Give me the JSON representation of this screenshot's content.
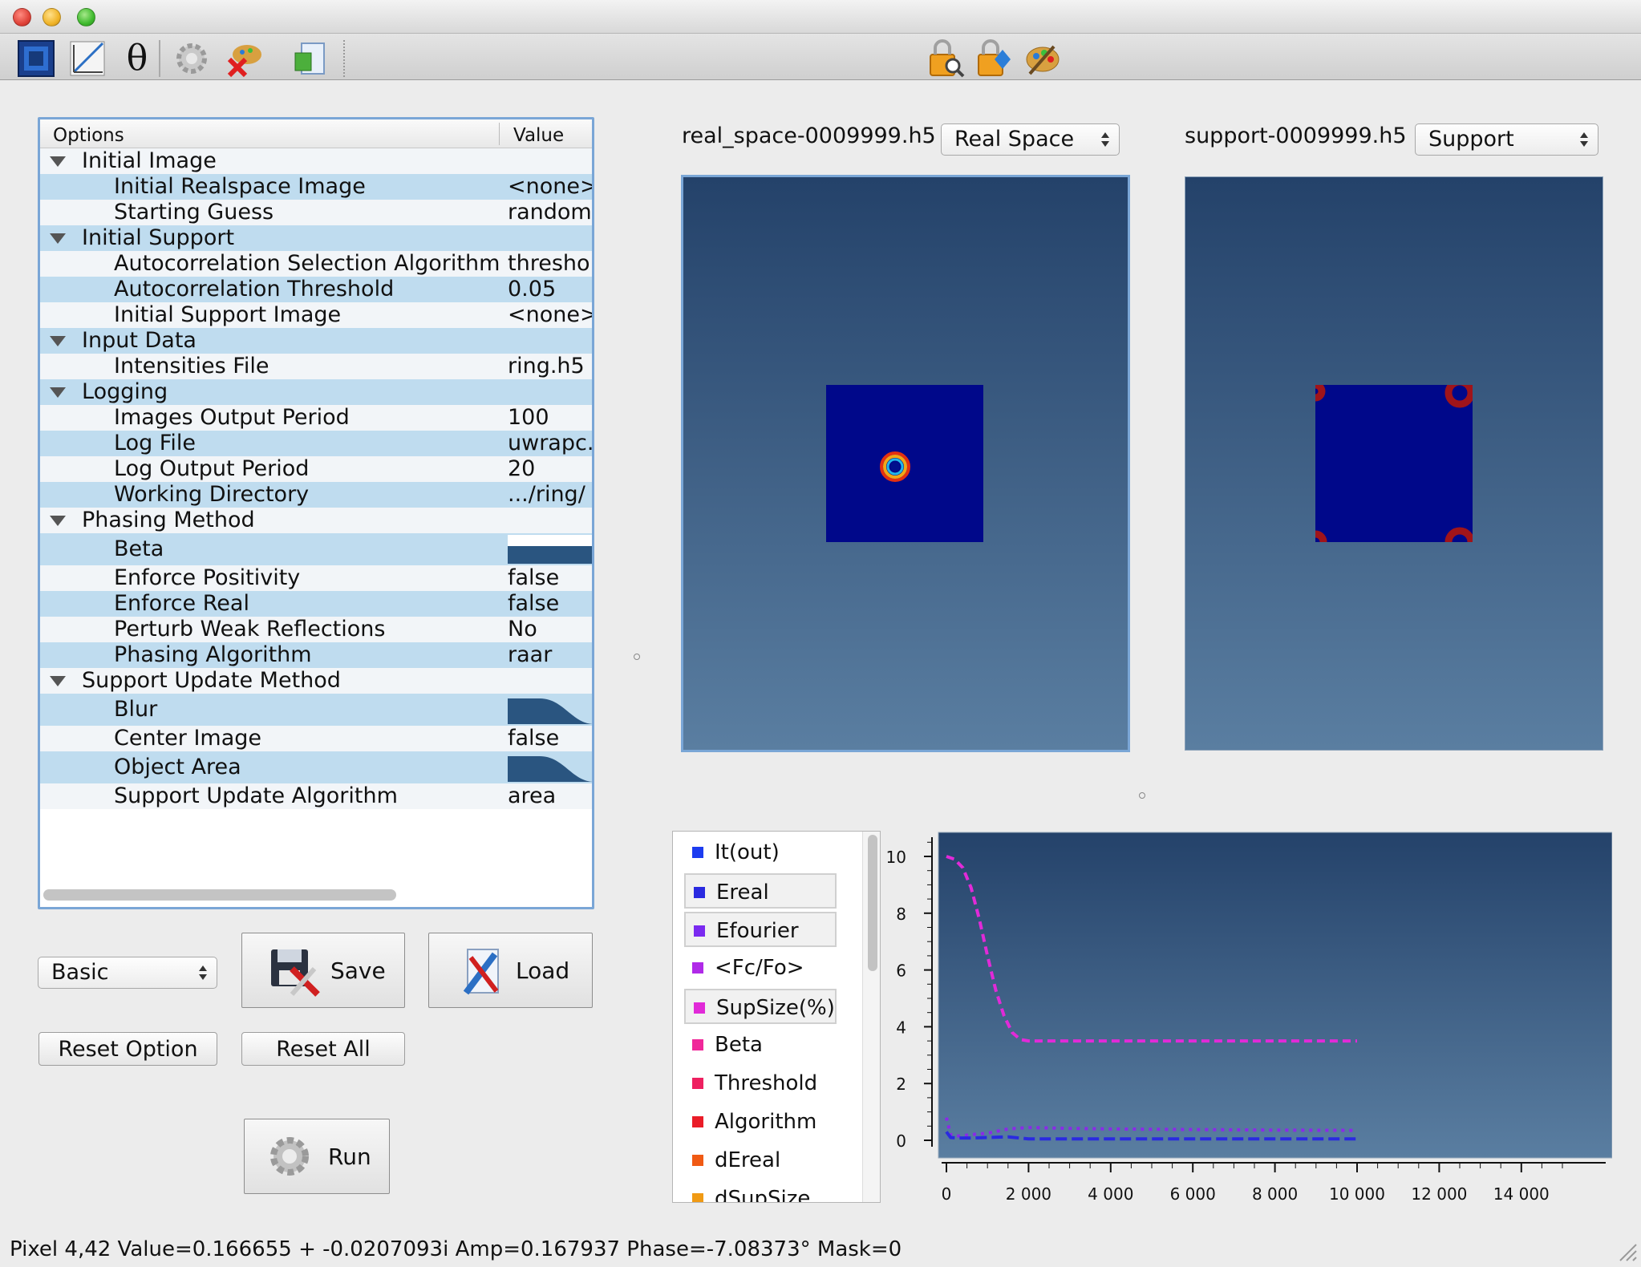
{
  "window": {
    "traffic_lights": [
      "close",
      "minimize",
      "zoom"
    ]
  },
  "toolbar": {
    "icons": [
      "image-view-icon",
      "plot-icon",
      "theta-icon",
      "gear-icon",
      "clear-palette-icon",
      "export-icon",
      "lock-zoom-icon",
      "lock-arrows-icon",
      "palette-icon"
    ],
    "theta_glyph": "θ"
  },
  "options_tree": {
    "header_options": "Options",
    "header_value": "Value",
    "rows": [
      {
        "type": "category",
        "label": "Initial Image",
        "value": ""
      },
      {
        "type": "item",
        "label": "Initial Realspace Image",
        "value": "<none>"
      },
      {
        "type": "item",
        "label": "Starting Guess",
        "value": "random"
      },
      {
        "type": "category",
        "label": "Initial Support",
        "value": ""
      },
      {
        "type": "item",
        "label": "Autocorrelation Selection Algorithm",
        "value": "threshold"
      },
      {
        "type": "item",
        "label": "Autocorrelation Threshold",
        "value": "0.05"
      },
      {
        "type": "item",
        "label": "Initial Support Image",
        "value": "<none>"
      },
      {
        "type": "category",
        "label": "Input Data",
        "value": ""
      },
      {
        "type": "item",
        "label": "Intensities File",
        "value": "ring.h5"
      },
      {
        "type": "category",
        "label": "Logging",
        "value": ""
      },
      {
        "type": "item",
        "label": "Images Output Period",
        "value": "100"
      },
      {
        "type": "item",
        "label": "Log File",
        "value": "uwrapc.log"
      },
      {
        "type": "item",
        "label": "Log Output Period",
        "value": "20"
      },
      {
        "type": "item",
        "label": "Working Directory",
        "value": ".../ring/"
      },
      {
        "type": "category",
        "label": "Phasing Method",
        "value": ""
      },
      {
        "type": "item",
        "label": "Beta",
        "value": ""
      },
      {
        "type": "item",
        "label": "Enforce Positivity",
        "value": "false"
      },
      {
        "type": "item",
        "label": "Enforce Real",
        "value": "false"
      },
      {
        "type": "item",
        "label": "Perturb Weak Reflections",
        "value": "No"
      },
      {
        "type": "item",
        "label": "Phasing Algorithm",
        "value": "raar"
      },
      {
        "type": "category",
        "label": "Support Update Method",
        "value": ""
      },
      {
        "type": "item",
        "label": "Blur",
        "value": ""
      },
      {
        "type": "item",
        "label": "Center Image",
        "value": "false"
      },
      {
        "type": "item",
        "label": "Object Area",
        "value": ""
      },
      {
        "type": "item",
        "label": "Support Update Algorithm",
        "value": "area"
      }
    ]
  },
  "controls": {
    "level_select": "Basic",
    "save_label": "Save",
    "load_label": "Load",
    "reset_option_label": "Reset Option",
    "reset_all_label": "Reset All",
    "run_label": "Run"
  },
  "views": {
    "real": {
      "filename": "real_space-0009999.h5",
      "mode": "Real Space"
    },
    "support": {
      "filename": "support-0009999.h5",
      "mode": "Support"
    }
  },
  "legend": [
    {
      "label": "It(out)",
      "color": "#1c3cf0",
      "boxed": false
    },
    {
      "label": "Ereal",
      "color": "#2a2ae0",
      "boxed": true
    },
    {
      "label": "Efourier",
      "color": "#7a2af0",
      "boxed": true
    },
    {
      "label": "<Fc/Fo>",
      "color": "#b02ae8",
      "boxed": false
    },
    {
      "label": "SupSize(%)",
      "color": "#e12ad8",
      "boxed": true
    },
    {
      "label": "Beta",
      "color": "#f0289a",
      "boxed": false
    },
    {
      "label": "Threshold",
      "color": "#ee2060",
      "boxed": false
    },
    {
      "label": "Algorithm",
      "color": "#ea1c28",
      "boxed": false
    },
    {
      "label": "dEreal",
      "color": "#f05a14",
      "boxed": false
    },
    {
      "label": "dSupSize",
      "color": "#f09a14",
      "boxed": false
    }
  ],
  "chart_data": {
    "type": "line",
    "xlim": [
      0,
      15000
    ],
    "ylim": [
      0,
      10.5
    ],
    "x_ticks": [
      0,
      2000,
      4000,
      6000,
      8000,
      10000,
      12000,
      14000
    ],
    "x_tick_labels": [
      "0",
      "2 000",
      "4 000",
      "6 000",
      "8 000",
      "10 000",
      "12 000",
      "14 000"
    ],
    "y_ticks": [
      0,
      2,
      4,
      6,
      8,
      10
    ],
    "y_tick_labels": [
      "0",
      "2",
      "4",
      "6",
      "8",
      "10"
    ],
    "series": [
      {
        "color": "#e12ad8",
        "dash": "10,6",
        "x": [
          0,
          200,
          400,
          600,
          800,
          1000,
          1200,
          1400,
          1600,
          1800,
          2000,
          3000,
          5000,
          8000,
          10000
        ],
        "y": [
          10.0,
          9.9,
          9.6,
          8.9,
          7.8,
          6.5,
          5.3,
          4.4,
          3.8,
          3.55,
          3.5,
          3.5,
          3.5,
          3.5,
          3.5
        ]
      },
      {
        "color": "#8a2ae8",
        "dash": "4,6",
        "x": [
          0,
          100,
          300,
          600,
          1000,
          1500,
          2000,
          3000,
          4000,
          6000,
          8000,
          10000
        ],
        "y": [
          0.8,
          0.2,
          0.15,
          0.2,
          0.25,
          0.4,
          0.45,
          0.42,
          0.4,
          0.38,
          0.36,
          0.35
        ]
      },
      {
        "color": "#2a2ae0",
        "dash": "14,6",
        "x": [
          0,
          100,
          300,
          600,
          1000,
          1500,
          2000,
          3000,
          5000,
          8000,
          10000
        ],
        "y": [
          0.3,
          0.1,
          0.08,
          0.08,
          0.1,
          0.12,
          0.05,
          0.05,
          0.05,
          0.05,
          0.05
        ]
      }
    ]
  },
  "status": {
    "text": "Pixel 4,42 Value=0.166655 + -0.0207093i Amp=0.167937 Phase=-7.08373° Mask=0"
  }
}
